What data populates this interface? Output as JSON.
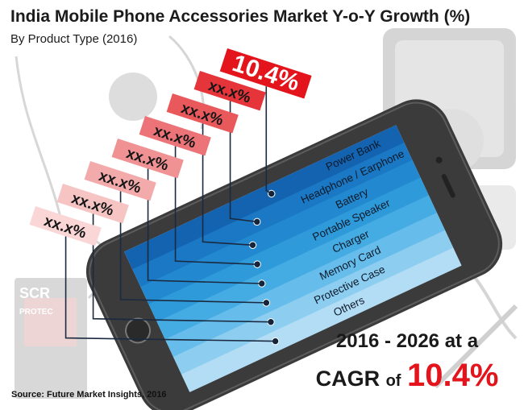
{
  "title": "India Mobile Phone Accessories Market Y-o-Y Growth (%)",
  "subtitle": "By Product Type (2016)",
  "source": "Source: Future Market Insights, 2016",
  "cagr": {
    "line1": "2016 - 2026 at a",
    "prefix": "CAGR",
    "of": "of",
    "value": "10.4%"
  },
  "chart_data": {
    "type": "bar",
    "title": "India Mobile Phone Accessories Market Y-o-Y Growth (%)",
    "subtitle": "By Product Type (2016)",
    "categories": [
      "Power Bank",
      "Headphone / Earphone",
      "Battery",
      "Portable Speaker",
      "Charger",
      "Memory Card",
      "Protective Case",
      "Others"
    ],
    "value_labels": [
      "10.4%",
      "xx.x%",
      "xx.x%",
      "xx.x%",
      "xx.x%",
      "xx.x%",
      "xx.x%",
      "xx.x%"
    ],
    "values": [
      10.4,
      null,
      null,
      null,
      null,
      null,
      null,
      null
    ],
    "colors": {
      "stripes": [
        "#1463b0",
        "#1a78c4",
        "#2289d0",
        "#2e9ada",
        "#45abe3",
        "#66bcea",
        "#8ccdf0",
        "#b3ddf5"
      ],
      "tags": [
        "#e3141b",
        "#e5353a",
        "#e9595c",
        "#ec7478",
        "#f09194",
        "#f3aaab",
        "#f7c4c4",
        "#fad6d6"
      ],
      "highlight": "#e3141b"
    }
  }
}
